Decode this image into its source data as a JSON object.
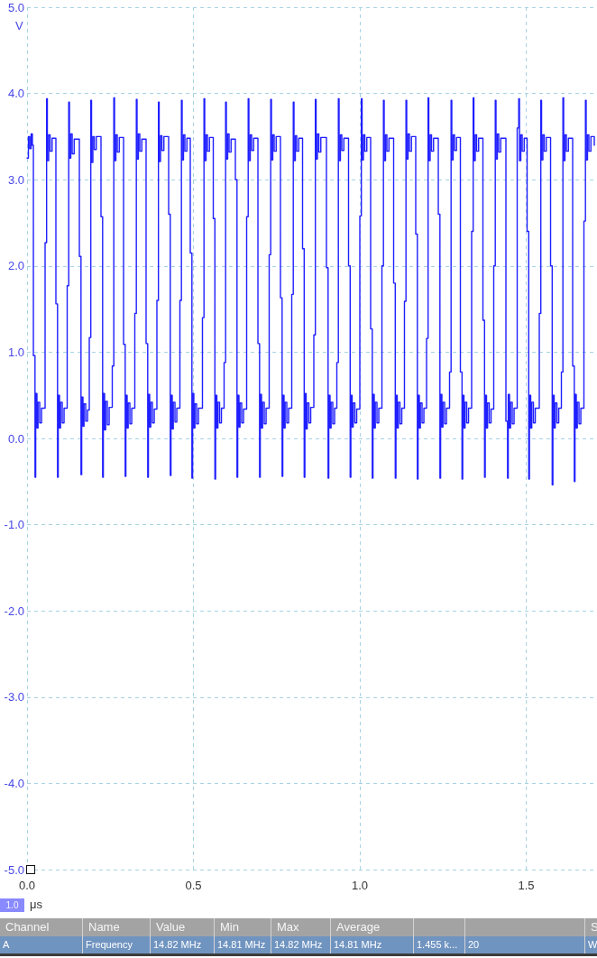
{
  "chart_data": {
    "type": "step",
    "color": "#1f1fff",
    "xlabel": "μs",
    "ylabel": "V",
    "grid": true,
    "xlim": [
      0,
      1.71
    ],
    "xticks": [
      {
        "value": 0,
        "label": "0.0"
      },
      {
        "value": 0.5,
        "label": "0.5"
      },
      {
        "value": 1,
        "label": "1.0"
      },
      {
        "value": 1.5,
        "label": "1.5"
      }
    ],
    "ylim": [
      -5,
      5
    ],
    "yticks": [
      {
        "value": -5,
        "label": "-5.0"
      },
      {
        "value": -4,
        "label": "-4.0"
      },
      {
        "value": -3,
        "label": "-3.0"
      },
      {
        "value": -2,
        "label": "-2.0"
      },
      {
        "value": -1,
        "label": "-1.0"
      },
      {
        "value": 0,
        "label": "0.0"
      },
      {
        "value": 1,
        "label": "1.0"
      },
      {
        "value": 2,
        "label": "2.0"
      },
      {
        "value": 3,
        "label": "3.0"
      },
      {
        "value": 4,
        "label": "4.0"
      },
      {
        "value": 5,
        "label": "5.0"
      }
    ],
    "annotations": [
      "1.0",
      "Channel",
      "Name",
      "Value",
      "Min",
      "Max",
      "Average",
      "S",
      "A",
      "Frequency",
      "14.82 MHz",
      "14.81 MHz",
      "14.82 MHz",
      "14.81 MHz",
      "1.455 k...",
      "20",
      "W"
    ],
    "x": [
      0,
      0.0041,
      0.0081,
      0.0122,
      0.016,
      0.019,
      0.0239,
      0.026,
      0.0298,
      0.033,
      0.038,
      0.0435,
      0.0542,
      0.0588,
      0.061,
      0.065,
      0.0692,
      0.0752,
      0.0867,
      0.0916,
      0.0937,
      0.0975,
      0.1007,
      0.1057,
      0.1112,
      0.1206,
      0.1252,
      0.1274,
      0.1314,
      0.1356,
      0.1416,
      0.1572,
      0.1621,
      0.1642,
      0.168,
      0.1712,
      0.1762,
      0.1817,
      0.187,
      0.1916,
      0.1938,
      0.1978,
      0.202,
      0.208,
      0.2222,
      0.2271,
      0.2292,
      0.233,
      0.2362,
      0.2412,
      0.2467,
      0.2561,
      0.2607,
      0.2629,
      0.2669,
      0.2711,
      0.2771,
      0.29,
      0.2949,
      0.297,
      0.3008,
      0.304,
      0.309,
      0.3145,
      0.3238,
      0.3284,
      0.3306,
      0.3346,
      0.3388,
      0.3448,
      0.3577,
      0.3626,
      0.3647,
      0.3685,
      0.3717,
      0.3767,
      0.3822,
      0.3902,
      0.3948,
      0.397,
      0.401,
      0.4052,
      0.4112,
      0.4255,
      0.4304,
      0.4325,
      0.4363,
      0.4395,
      0.4445,
      0.45,
      0.4593,
      0.4639,
      0.4661,
      0.4701,
      0.4743,
      0.4803,
      0.4905,
      0.4954,
      0.4975,
      0.5013,
      0.5045,
      0.5095,
      0.515,
      0.5271,
      0.5317,
      0.5339,
      0.5379,
      0.5421,
      0.5481,
      0.5596,
      0.5645,
      0.5666,
      0.5704,
      0.5736,
      0.5786,
      0.5841,
      0.5921,
      0.5967,
      0.5989,
      0.6029,
      0.6071,
      0.6131,
      0.626,
      0.6309,
      0.633,
      0.6368,
      0.64,
      0.645,
      0.6505,
      0.6599,
      0.6645,
      0.6667,
      0.6707,
      0.6749,
      0.6809,
      0.6938,
      0.6987,
      0.7008,
      0.7046,
      0.7078,
      0.7128,
      0.7183,
      0.7276,
      0.7322,
      0.7344,
      0.7384,
      0.7426,
      0.7486,
      0.7615,
      0.7664,
      0.7685,
      0.7723,
      0.7755,
      0.7805,
      0.786,
      0.7954,
      0.8,
      0.8022,
      0.8062,
      0.8104,
      0.8164,
      0.8279,
      0.8328,
      0.8349,
      0.8387,
      0.8419,
      0.8469,
      0.8524,
      0.8618,
      0.8664,
      0.8686,
      0.8726,
      0.8768,
      0.8828,
      0.8997,
      0.9046,
      0.9067,
      0.9105,
      0.9137,
      0.9187,
      0.9242,
      0.9309,
      0.9355,
      0.9377,
      0.9417,
      0.9459,
      0.9519,
      0.9661,
      0.971,
      0.9731,
      0.9769,
      0.9801,
      0.9851,
      0.9906,
      1,
      1.0046,
      1.0068,
      1.0108,
      1.015,
      1.021,
      1.0325,
      1.0374,
      1.0395,
      1.0433,
      1.0465,
      1.0515,
      1.057,
      1.0664,
      1.071,
      1.0732,
      1.0772,
      1.0814,
      1.0874,
      1.1016,
      1.1065,
      1.1086,
      1.1124,
      1.1156,
      1.1206,
      1.1261,
      1.1341,
      1.1387,
      1.1409,
      1.1449,
      1.1491,
      1.1551,
      1.168,
      1.1729,
      1.175,
      1.1788,
      1.182,
      1.187,
      1.1925,
      1.2005,
      1.2051,
      1.2073,
      1.2113,
      1.2155,
      1.2215,
      1.2358,
      1.2407,
      1.2428,
      1.2466,
      1.2498,
      1.2548,
      1.2603,
      1.2696,
      1.2742,
      1.2764,
      1.2804,
      1.2846,
      1.2906,
      1.3022,
      1.3071,
      1.3092,
      1.313,
      1.3162,
      1.3212,
      1.3267,
      1.336,
      1.3406,
      1.3428,
      1.3468,
      1.351,
      1.357,
      1.3699,
      1.3748,
      1.3769,
      1.3807,
      1.3839,
      1.3889,
      1.3944,
      1.4024,
      1.407,
      1.4092,
      1.4132,
      1.4174,
      1.4234,
      1.439,
      1.4439,
      1.446,
      1.4498,
      1.453,
      1.458,
      1.4635,
      1.4729,
      1.4775,
      1.4797,
      1.4837,
      1.4879,
      1.4939,
      1.5027,
      1.5076,
      1.5097,
      1.5135,
      1.5167,
      1.5217,
      1.5272,
      1.5393,
      1.5439,
      1.5461,
      1.5501,
      1.5543,
      1.5603,
      1.5732,
      1.5781,
      1.5802,
      1.584,
      1.5872,
      1.5922,
      1.5977,
      1.6057,
      1.6103,
      1.6125,
      1.6165,
      1.6207,
      1.6267,
      1.6396,
      1.6445,
      1.6466,
      1.6504,
      1.6536,
      1.6586,
      1.6641,
      1.6734,
      1.678,
      1.6802,
      1.6842,
      1.6884,
      1.6944,
      1.7046
    ],
    "values": [
      3.25,
      3.5,
      3.36,
      3.53,
      3.4,
      0.96,
      -0.45,
      0.52,
      0.12,
      0.42,
      0.18,
      0.35,
      2.27,
      3.94,
      3.22,
      3.52,
      3.33,
      3.48,
      1.56,
      -0.45,
      0.5,
      0.12,
      0.42,
      0.18,
      0.35,
      1.77,
      3.9,
      3.25,
      3.53,
      3.3,
      3.47,
      2.11,
      -0.42,
      0.48,
      0.14,
      0.4,
      0.2,
      0.33,
      1.17,
      3.92,
      3.2,
      3.5,
      3.35,
      3.5,
      2.57,
      -0.45,
      0.52,
      0.1,
      0.43,
      0.16,
      0.36,
      0.84,
      3.95,
      3.22,
      3.52,
      3.32,
      3.49,
      1.09,
      -0.44,
      0.5,
      0.12,
      0.41,
      0.17,
      0.35,
      1.45,
      3.93,
      3.24,
      3.53,
      3.33,
      3.47,
      1.1,
      -0.45,
      0.51,
      0.13,
      0.42,
      0.18,
      0.34,
      1.6,
      3.9,
      3.21,
      3.51,
      3.34,
      3.5,
      2.6,
      -0.43,
      0.5,
      0.11,
      0.42,
      0.19,
      0.35,
      1.6,
      3.92,
      3.23,
      3.52,
      3.33,
      3.48,
      2.15,
      -0.46,
      0.52,
      0.12,
      0.4,
      0.17,
      0.35,
      1.4,
      3.94,
      3.22,
      3.52,
      3.33,
      3.49,
      2.55,
      -0.47,
      0.5,
      0.12,
      0.42,
      0.18,
      0.35,
      0.88,
      3.9,
      3.24,
      3.53,
      3.32,
      3.47,
      3,
      -0.45,
      0.5,
      0.13,
      0.41,
      0.18,
      0.34,
      2.57,
      3.94,
      3.22,
      3.52,
      3.34,
      3.48,
      1.1,
      -0.45,
      0.51,
      0.12,
      0.42,
      0.17,
      0.35,
      2.13,
      3.93,
      3.23,
      3.52,
      3.33,
      3.5,
      1.63,
      -0.44,
      0.5,
      0.12,
      0.42,
      0.18,
      0.35,
      1.67,
      3.9,
      3.22,
      3.51,
      3.33,
      3.48,
      2.2,
      -0.45,
      0.52,
      0.11,
      0.41,
      0.18,
      0.36,
      1.2,
      3.93,
      3.24,
      3.53,
      3.32,
      3.49,
      1.98,
      -0.46,
      0.5,
      0.12,
      0.42,
      0.17,
      0.35,
      0.88,
      3.94,
      3.22,
      3.52,
      3.34,
      3.48,
      2,
      -0.45,
      0.5,
      0.13,
      0.41,
      0.18,
      0.34,
      2.58,
      3.94,
      3.23,
      3.52,
      3.33,
      3.49,
      1.27,
      -0.46,
      0.51,
      0.12,
      0.42,
      0.18,
      0.35,
      2,
      3.92,
      3.22,
      3.52,
      3.33,
      3.48,
      1.8,
      -0.46,
      0.5,
      0.12,
      0.42,
      0.17,
      0.35,
      1.59,
      3.92,
      3.24,
      3.53,
      3.33,
      3.5,
      2.37,
      -0.47,
      0.5,
      0.12,
      0.41,
      0.18,
      0.35,
      1.16,
      3.95,
      3.22,
      3.52,
      3.33,
      3.48,
      2.6,
      -0.46,
      0.51,
      0.13,
      0.42,
      0.17,
      0.35,
      0.77,
      3.92,
      3.23,
      3.52,
      3.34,
      3.49,
      0.77,
      -0.47,
      0.5,
      0.12,
      0.42,
      0.18,
      0.35,
      2.4,
      3.95,
      3.22,
      3.52,
      3.33,
      3.48,
      1.37,
      -0.45,
      0.5,
      0.12,
      0.41,
      0.18,
      0.34,
      2,
      3.92,
      3.24,
      3.53,
      3.32,
      3.48,
      0.2,
      -0.46,
      0.51,
      0.12,
      0.42,
      0.17,
      0.35,
      3.6,
      3.94,
      3.22,
      3.52,
      3.33,
      3.48,
      2.4,
      -0.47,
      0.5,
      0.12,
      0.42,
      0.18,
      0.35,
      1.45,
      3.92,
      3.23,
      3.52,
      3.33,
      3.49,
      2,
      -0.54,
      0.5,
      0.12,
      0.41,
      0.18,
      0.35,
      0.77,
      3.95,
      3.22,
      3.52,
      3.33,
      3.48,
      0.84,
      -0.5,
      0.51,
      0.12,
      0.42,
      0.17,
      0.35,
      2.52,
      3.92,
      3.23,
      3.52,
      3.33,
      3.5,
      3.4
    ]
  }
}
